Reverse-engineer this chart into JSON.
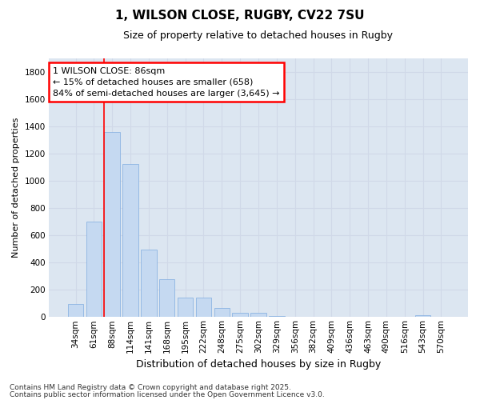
{
  "title1": "1, WILSON CLOSE, RUGBY, CV22 7SU",
  "title2": "Size of property relative to detached houses in Rugby",
  "xlabel": "Distribution of detached houses by size in Rugby",
  "ylabel": "Number of detached properties",
  "bar_labels": [
    "34sqm",
    "61sqm",
    "88sqm",
    "114sqm",
    "141sqm",
    "168sqm",
    "195sqm",
    "222sqm",
    "248sqm",
    "275sqm",
    "302sqm",
    "329sqm",
    "356sqm",
    "382sqm",
    "409sqm",
    "436sqm",
    "463sqm",
    "490sqm",
    "516sqm",
    "543sqm",
    "570sqm"
  ],
  "bar_values": [
    95,
    700,
    1355,
    1125,
    495,
    275,
    145,
    145,
    65,
    30,
    30,
    5,
    3,
    3,
    2,
    2,
    2,
    2,
    2,
    15,
    2
  ],
  "bar_color": "#c5d9f1",
  "bar_edge_color": "#8db4e2",
  "grid_color": "#d0d8e8",
  "background_color": "#ffffff",
  "plot_bg_color": "#dce6f1",
  "vline_x": 2,
  "vline_color": "#ff0000",
  "annotation_text": "1 WILSON CLOSE: 86sqm\n← 15% of detached houses are smaller (658)\n84% of semi-detached houses are larger (3,645) →",
  "annotation_box_facecolor": "#ffffff",
  "annotation_box_edgecolor": "#ff0000",
  "ylim": [
    0,
    1900
  ],
  "yticks": [
    0,
    200,
    400,
    600,
    800,
    1000,
    1200,
    1400,
    1600,
    1800
  ],
  "footer1": "Contains HM Land Registry data © Crown copyright and database right 2025.",
  "footer2": "Contains public sector information licensed under the Open Government Licence v3.0.",
  "title1_fontsize": 11,
  "title2_fontsize": 9,
  "ylabel_fontsize": 8,
  "xlabel_fontsize": 9,
  "tick_fontsize": 7.5,
  "footer_fontsize": 6.5,
  "ann_fontsize": 8
}
